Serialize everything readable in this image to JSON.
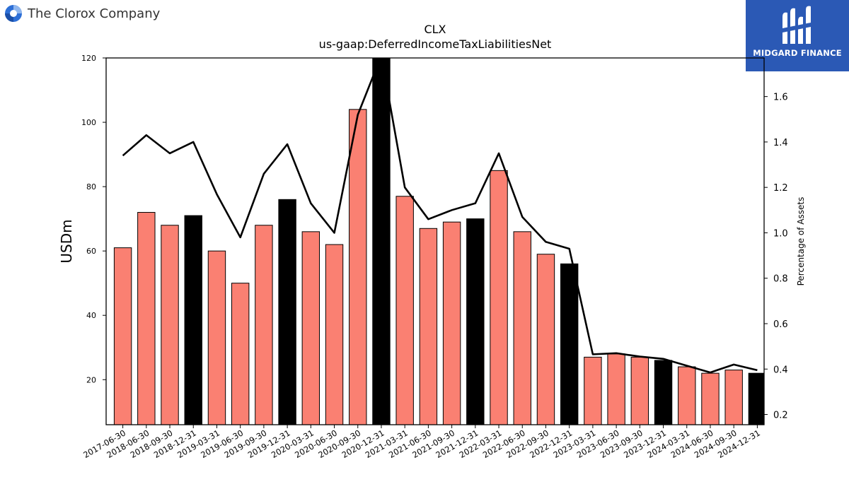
{
  "header": {
    "company_name": "The Clorox Company",
    "logo_icon": "clorox-logo-icon",
    "brand_name": "MIDGARD FINANCE",
    "brand_icon": "midgard-logo-icon",
    "brand_color": "#2b59b5"
  },
  "chart_data": {
    "type": "bar",
    "title": "CLX",
    "subtitle": "us-gaap:DeferredIncomeTaxLiabilitiesNet",
    "ylabel": "USDm",
    "y2label": "Percentage of Assets",
    "ylim": [
      6,
      120
    ],
    "y2lim": [
      0.155,
      1.77
    ],
    "yticks": [
      20,
      40,
      60,
      80,
      100,
      120
    ],
    "y2ticks": [
      "0.2",
      "0.4",
      "0.6",
      "0.8",
      "1.0",
      "1.2",
      "1.4",
      "1.6"
    ],
    "grid": false,
    "categories": [
      "2017-06-30",
      "2018-06-30",
      "2018-09-30",
      "2018-12-31",
      "2019-03-31",
      "2019-06-30",
      "2019-09-30",
      "2019-12-31",
      "2020-03-31",
      "2020-06-30",
      "2020-09-30",
      "2020-12-31",
      "2021-03-31",
      "2021-06-30",
      "2021-09-30",
      "2021-12-31",
      "2022-03-31",
      "2022-06-30",
      "2022-09-30",
      "2022-12-31",
      "2023-03-31",
      "2023-06-30",
      "2023-09-30",
      "2023-12-31",
      "2024-03-31",
      "2024-06-30",
      "2024-09-30",
      "2024-12-31"
    ],
    "series": [
      {
        "values": [
          61,
          72,
          68,
          71,
          60,
          50,
          68,
          76,
          66,
          62,
          104,
          121,
          77,
          67,
          69,
          70,
          85,
          66,
          59,
          56,
          27,
          28,
          27,
          26,
          24,
          22,
          23,
          22
        ],
        "highlight": [
          false,
          false,
          false,
          true,
          false,
          false,
          false,
          true,
          false,
          false,
          false,
          true,
          false,
          false,
          false,
          true,
          false,
          false,
          false,
          true,
          false,
          false,
          false,
          true,
          false,
          false,
          false,
          true
        ],
        "color": "#fa8072",
        "highlight_color": "#000000"
      },
      {
        "type": "line",
        "axis": "right",
        "values": [
          1.34,
          1.43,
          1.35,
          1.4,
          1.17,
          0.98,
          1.26,
          1.39,
          1.13,
          1.0,
          1.52,
          1.78,
          1.2,
          1.06,
          1.1,
          1.13,
          1.35,
          1.07,
          0.96,
          0.93,
          0.465,
          0.47,
          0.455,
          0.445,
          0.415,
          0.385,
          0.42,
          0.395
        ],
        "color": "#000000"
      }
    ]
  }
}
